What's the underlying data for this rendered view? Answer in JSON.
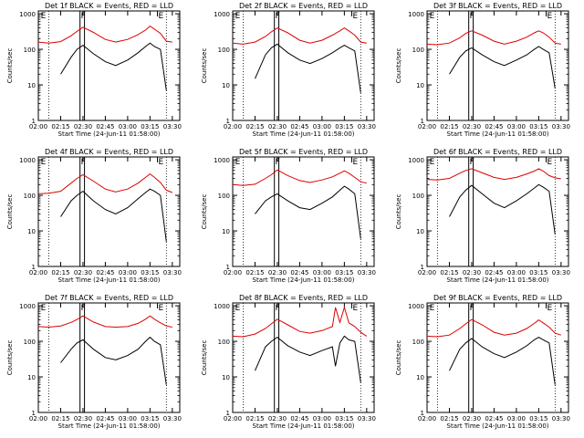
{
  "figure": {
    "ylabel": "Counts/sec",
    "xlabel": "Start Time (24-Jun-11 01:58:00)",
    "x_tick_labels": [
      "02:00",
      "02:15",
      "02:30",
      "02:45",
      "03:00",
      "03:15",
      "03:30"
    ],
    "y_tick_labels": [
      "1",
      "10",
      "100",
      "1000"
    ],
    "marker_letters": [
      "E",
      "F",
      "E"
    ],
    "colors": {
      "events": "#000000",
      "lld": "#dd0000",
      "axes": "#000000"
    }
  },
  "chart_data": [
    {
      "type": "line",
      "title": "Det 1f BLACK = Events, RED = LLD",
      "xlim": [
        "02:00",
        "03:35"
      ],
      "ylim": [
        1,
        1200
      ],
      "yscale": "log",
      "x": [
        "02:00",
        "02:07",
        "02:15",
        "02:22",
        "02:26",
        "02:30",
        "02:37",
        "02:45",
        "02:52",
        "03:00",
        "03:07",
        "03:12",
        "03:15",
        "03:18",
        "03:22",
        "03:26",
        "03:30"
      ],
      "series": [
        {
          "name": "Events",
          "values": [
            null,
            null,
            20,
            60,
            100,
            130,
            75,
            45,
            35,
            50,
            80,
            120,
            150,
            120,
            100,
            7,
            null
          ]
        },
        {
          "name": "LLD",
          "values": [
            160,
            150,
            165,
            240,
            320,
            420,
            300,
            190,
            160,
            190,
            260,
            350,
            450,
            370,
            280,
            170,
            160
          ]
        }
      ]
    },
    {
      "type": "line",
      "title": "Det 2f BLACK = Events, RED = LLD",
      "xlim": [
        "02:00",
        "03:35"
      ],
      "ylim": [
        1,
        1200
      ],
      "yscale": "log",
      "x": [
        "02:00",
        "02:07",
        "02:15",
        "02:22",
        "02:26",
        "02:30",
        "02:37",
        "02:45",
        "02:52",
        "03:00",
        "03:07",
        "03:12",
        "03:15",
        "03:18",
        "03:22",
        "03:26",
        "03:30"
      ],
      "series": [
        {
          "name": "Events",
          "values": [
            null,
            null,
            15,
            70,
            110,
            140,
            80,
            50,
            40,
            55,
            80,
            110,
            130,
            110,
            90,
            6,
            null
          ]
        },
        {
          "name": "LLD",
          "values": [
            150,
            140,
            160,
            230,
            310,
            400,
            290,
            180,
            150,
            180,
            250,
            330,
            400,
            330,
            250,
            160,
            150
          ]
        }
      ]
    },
    {
      "type": "line",
      "title": "Det 3f BLACK = Events, RED = LLD",
      "xlim": [
        "02:00",
        "03:35"
      ],
      "ylim": [
        1,
        1200
      ],
      "yscale": "log",
      "x": [
        "02:00",
        "02:07",
        "02:15",
        "02:22",
        "02:26",
        "02:30",
        "02:37",
        "02:45",
        "02:52",
        "03:00",
        "03:07",
        "03:12",
        "03:15",
        "03:18",
        "03:22",
        "03:26",
        "03:30"
      ],
      "series": [
        {
          "name": "Events",
          "values": [
            null,
            null,
            20,
            60,
            90,
            110,
            70,
            45,
            35,
            50,
            70,
            100,
            120,
            100,
            80,
            8,
            null
          ]
        },
        {
          "name": "LLD",
          "values": [
            140,
            135,
            150,
            210,
            280,
            330,
            250,
            170,
            140,
            170,
            220,
            290,
            330,
            290,
            220,
            150,
            140
          ]
        }
      ]
    },
    {
      "type": "line",
      "title": "Det 4f BLACK = Events, RED = LLD",
      "xlim": [
        "02:00",
        "03:35"
      ],
      "ylim": [
        1,
        1200
      ],
      "yscale": "log",
      "x": [
        "02:00",
        "02:07",
        "02:15",
        "02:22",
        "02:26",
        "02:30",
        "02:37",
        "02:45",
        "02:52",
        "03:00",
        "03:07",
        "03:12",
        "03:15",
        "03:18",
        "03:22",
        "03:26",
        "03:30"
      ],
      "series": [
        {
          "name": "Events",
          "values": [
            null,
            null,
            25,
            70,
            100,
            130,
            70,
            40,
            30,
            45,
            80,
            120,
            150,
            130,
            100,
            5,
            null
          ]
        },
        {
          "name": "LLD",
          "values": [
            110,
            115,
            130,
            220,
            300,
            380,
            250,
            150,
            125,
            150,
            220,
            320,
            400,
            320,
            230,
            140,
            120
          ]
        }
      ]
    },
    {
      "type": "line",
      "title": "Det 5f BLACK = Events, RED = LLD",
      "xlim": [
        "02:00",
        "03:35"
      ],
      "ylim": [
        1,
        1200
      ],
      "yscale": "log",
      "x": [
        "02:00",
        "02:07",
        "02:15",
        "02:22",
        "02:26",
        "02:30",
        "02:37",
        "02:45",
        "02:52",
        "03:00",
        "03:07",
        "03:12",
        "03:15",
        "03:18",
        "03:22",
        "03:26",
        "03:30"
      ],
      "series": [
        {
          "name": "Events",
          "values": [
            null,
            null,
            30,
            70,
            90,
            110,
            70,
            45,
            40,
            60,
            90,
            140,
            180,
            150,
            110,
            6,
            null
          ]
        },
        {
          "name": "LLD",
          "values": [
            200,
            190,
            205,
            300,
            380,
            520,
            360,
            260,
            230,
            270,
            330,
            420,
            490,
            420,
            320,
            240,
            220
          ]
        }
      ]
    },
    {
      "type": "line",
      "title": "Det 6f BLACK = Events, RED = LLD",
      "xlim": [
        "02:00",
        "03:35"
      ],
      "ylim": [
        1,
        1200
      ],
      "yscale": "log",
      "x": [
        "02:00",
        "02:07",
        "02:15",
        "02:22",
        "02:26",
        "02:30",
        "02:37",
        "02:45",
        "02:52",
        "03:00",
        "03:07",
        "03:12",
        "03:15",
        "03:18",
        "03:22",
        "03:26",
        "03:30"
      ],
      "series": [
        {
          "name": "Events",
          "values": [
            null,
            null,
            25,
            90,
            140,
            190,
            110,
            60,
            45,
            70,
            110,
            160,
            200,
            170,
            130,
            8,
            null
          ]
        },
        {
          "name": "LLD",
          "values": [
            280,
            270,
            300,
            420,
            500,
            560,
            430,
            320,
            280,
            320,
            400,
            480,
            560,
            480,
            360,
            310,
            290
          ]
        }
      ]
    },
    {
      "type": "line",
      "title": "Det 7f BLACK = Events, RED = LLD",
      "xlim": [
        "02:00",
        "03:35"
      ],
      "ylim": [
        1,
        1200
      ],
      "yscale": "log",
      "x": [
        "02:00",
        "02:07",
        "02:15",
        "02:22",
        "02:26",
        "02:30",
        "02:37",
        "02:45",
        "02:52",
        "03:00",
        "03:07",
        "03:12",
        "03:15",
        "03:18",
        "03:22",
        "03:26",
        "03:30"
      ],
      "series": [
        {
          "name": "Events",
          "values": [
            null,
            null,
            25,
            60,
            90,
            110,
            60,
            35,
            30,
            40,
            60,
            100,
            130,
            100,
            80,
            6,
            null
          ]
        },
        {
          "name": "LLD",
          "values": [
            260,
            250,
            270,
            340,
            410,
            520,
            350,
            260,
            250,
            260,
            320,
            420,
            520,
            420,
            330,
            270,
            250
          ]
        }
      ]
    },
    {
      "type": "line",
      "title": "Det 8f BLACK = Events, RED = LLD",
      "xlim": [
        "02:00",
        "03:35"
      ],
      "ylim": [
        1,
        1200
      ],
      "yscale": "log",
      "x": [
        "02:00",
        "02:07",
        "02:15",
        "02:22",
        "02:26",
        "02:30",
        "02:37",
        "02:45",
        "02:52",
        "03:00",
        "03:07",
        "03:09",
        "03:12",
        "03:15",
        "03:18",
        "03:22",
        "03:26",
        "03:30"
      ],
      "series": [
        {
          "name": "Events",
          "values": [
            null,
            null,
            15,
            70,
            100,
            130,
            75,
            50,
            40,
            55,
            70,
            20,
            90,
            140,
            110,
            100,
            7,
            null
          ]
        },
        {
          "name": "LLD",
          "values": [
            140,
            135,
            160,
            230,
            310,
            420,
            290,
            190,
            170,
            200,
            260,
            900,
            340,
            900,
            330,
            260,
            180,
            140
          ]
        }
      ]
    },
    {
      "type": "line",
      "title": "Det 9f BLACK = Events, RED = LLD",
      "xlim": [
        "02:00",
        "03:35"
      ],
      "ylim": [
        1,
        1200
      ],
      "yscale": "log",
      "x": [
        "02:00",
        "02:07",
        "02:15",
        "02:22",
        "02:26",
        "02:30",
        "02:37",
        "02:45",
        "02:52",
        "03:00",
        "03:07",
        "03:12",
        "03:15",
        "03:18",
        "03:22",
        "03:26",
        "03:30"
      ],
      "series": [
        {
          "name": "Events",
          "values": [
            null,
            null,
            15,
            60,
            90,
            120,
            70,
            45,
            35,
            50,
            75,
            110,
            130,
            110,
            90,
            6,
            null
          ]
        },
        {
          "name": "LLD",
          "values": [
            140,
            135,
            150,
            230,
            310,
            410,
            290,
            180,
            150,
            170,
            230,
            320,
            400,
            330,
            250,
            170,
            150
          ]
        }
      ]
    }
  ]
}
